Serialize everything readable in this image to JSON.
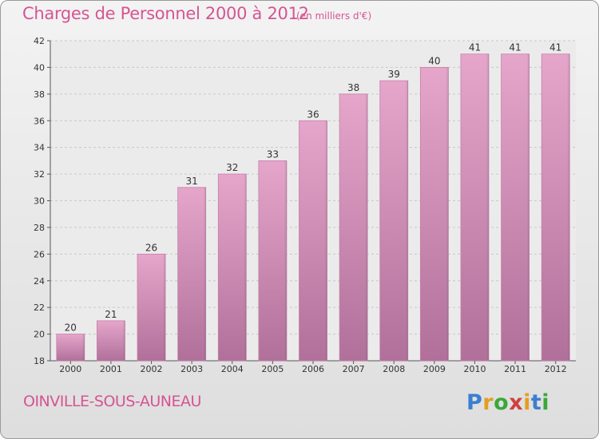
{
  "chart_data": {
    "type": "bar",
    "title": "Charges de Personnel 2000 à 2012",
    "subtitle": "(en milliers d'€)",
    "categories": [
      "2000",
      "2001",
      "2002",
      "2003",
      "2004",
      "2005",
      "2006",
      "2007",
      "2008",
      "2009",
      "2010",
      "2011",
      "2012"
    ],
    "values": [
      20,
      21,
      26,
      31,
      32,
      33,
      36,
      38,
      39,
      40,
      41,
      41,
      41
    ],
    "ylim": [
      18,
      42
    ],
    "yticks": [
      18,
      20,
      22,
      24,
      26,
      28,
      30,
      32,
      34,
      36,
      38,
      40,
      42
    ],
    "grid": true,
    "bar_color": "#cc6f9f"
  },
  "location": "OINVILLE-SOUS-AUNEAU",
  "brand": {
    "letters": [
      "P",
      "r",
      "o",
      "x",
      "i",
      "t",
      "i"
    ],
    "colors": [
      "#3a7fd0",
      "#e0a020",
      "#3aa83a",
      "#d04040",
      "#e0a020",
      "#3a7fd0",
      "#3aa83a"
    ]
  }
}
